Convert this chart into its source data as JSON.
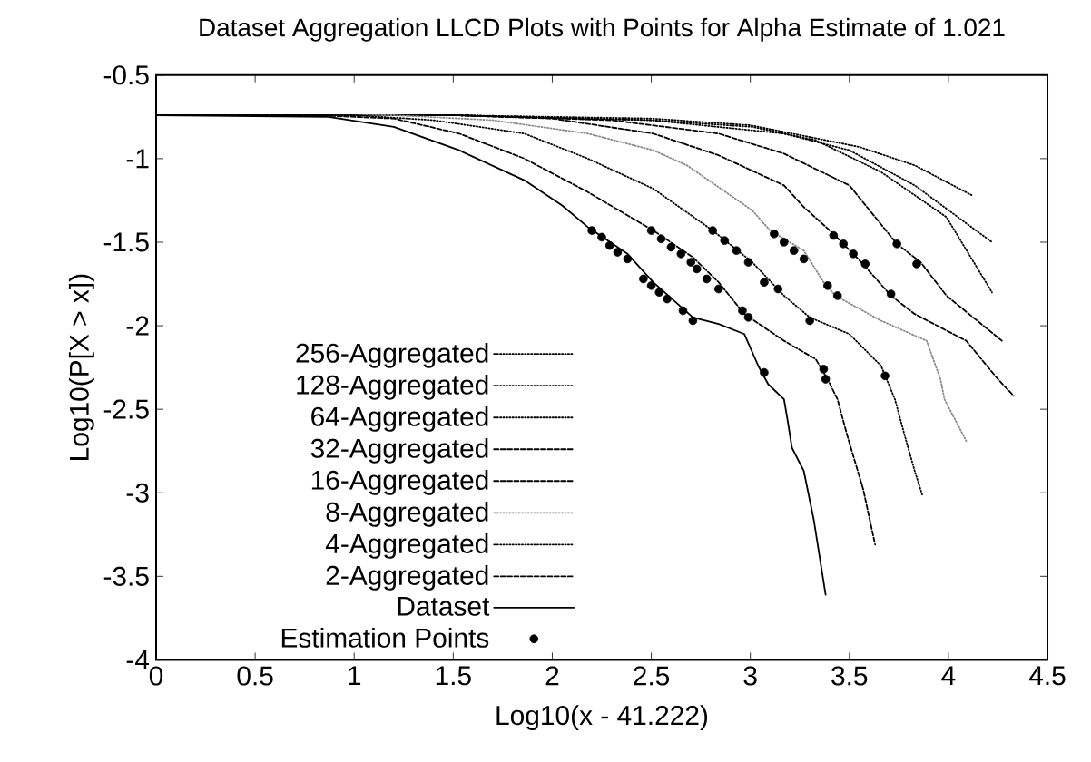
{
  "chart_data": {
    "type": "line",
    "title": "Dataset Aggregation LLCD Plots with Points for Alpha Estimate of 1.021",
    "xlabel": "Log10(x - 41.222)",
    "ylabel": "Log10(P[X > x])",
    "xlim": [
      0,
      4.5
    ],
    "ylim": [
      -4,
      -0.5
    ],
    "xticks": [
      0,
      0.5,
      1,
      1.5,
      2,
      2.5,
      3,
      3.5,
      4,
      4.5
    ],
    "yticks": [
      -4,
      -3.5,
      -3,
      -2.5,
      -2,
      -1.5,
      -1,
      -0.5
    ],
    "grid": false,
    "legend": "bottom left",
    "marker": "none",
    "series": [
      {
        "name": "256-Aggregated",
        "color": "#000000",
        "line_style": "dotted",
        "x": [
          0,
          1.5,
          2.5,
          3.0,
          3.55,
          3.83,
          4.12
        ],
        "values": [
          -0.74,
          -0.74,
          -0.76,
          -0.8,
          -0.93,
          -1.04,
          -1.22
        ]
      },
      {
        "name": "128-Aggregated",
        "color": "#000000",
        "line_style": "dotted",
        "x": [
          0,
          1.5,
          2.5,
          3.17,
          3.5,
          3.83,
          4.22
        ],
        "values": [
          -0.74,
          -0.74,
          -0.77,
          -0.85,
          -0.95,
          -1.16,
          -1.5
        ]
      },
      {
        "name": "64-Aggregated",
        "color": "#000000",
        "line_style": "dotted",
        "x": [
          0,
          1.5,
          2.5,
          3.01,
          3.33,
          3.66,
          3.99,
          4.22
        ],
        "values": [
          -0.74,
          -0.74,
          -0.77,
          -0.81,
          -0.89,
          -1.08,
          -1.35,
          -1.8
        ]
      },
      {
        "name": "32-Aggregated",
        "color": "#000000",
        "line_style": "dashed",
        "x": [
          0,
          1.5,
          2.3,
          2.84,
          3.17,
          3.5,
          3.74,
          3.86,
          3.99,
          4.27
        ],
        "values": [
          -0.74,
          -0.74,
          -0.77,
          -0.85,
          -0.97,
          -1.16,
          -1.51,
          -1.62,
          -1.82,
          -2.09
        ]
      },
      {
        "name": "16-Aggregated",
        "color": "#000000",
        "line_style": "dashed",
        "x": [
          0,
          1.5,
          2.0,
          2.51,
          2.84,
          3.17,
          3.27,
          3.42,
          3.56,
          3.71,
          3.83,
          4.09,
          4.25,
          4.33
        ],
        "values": [
          -0.74,
          -0.74,
          -0.76,
          -0.85,
          -0.98,
          -1.16,
          -1.29,
          -1.45,
          -1.62,
          -1.82,
          -1.93,
          -2.09,
          -2.32,
          -2.42
        ]
      },
      {
        "name": "8-Aggregated",
        "color": "#888888",
        "line_style": "dotted",
        "x": [
          0,
          1.2,
          1.7,
          2.18,
          2.51,
          2.68,
          3.01,
          3.1,
          3.27,
          3.37,
          3.43,
          3.66,
          3.89,
          3.96,
          3.98,
          4.09
        ],
        "values": [
          -0.74,
          -0.74,
          -0.77,
          -0.85,
          -0.95,
          -1.04,
          -1.31,
          -1.43,
          -1.55,
          -1.74,
          -1.82,
          -1.97,
          -2.09,
          -2.32,
          -2.44,
          -2.69
        ]
      },
      {
        "name": "4-Aggregated",
        "color": "#000000",
        "line_style": "dotted",
        "x": [
          0,
          1.0,
          1.4,
          1.86,
          2.18,
          2.51,
          2.81,
          3.01,
          3.17,
          3.3,
          3.5,
          3.66,
          3.73,
          3.78,
          3.83,
          3.87
        ],
        "values": [
          -0.74,
          -0.74,
          -0.77,
          -0.85,
          -1.0,
          -1.18,
          -1.43,
          -1.62,
          -1.82,
          -1.95,
          -2.05,
          -2.24,
          -2.44,
          -2.66,
          -2.87,
          -3.02
        ]
      },
      {
        "name": "2-Aggregated",
        "color": "#000000",
        "line_style": "dashed",
        "x": [
          0,
          0.8,
          1.2,
          1.53,
          1.86,
          2.18,
          2.51,
          2.71,
          2.84,
          2.97,
          3.17,
          3.33,
          3.39,
          3.44,
          3.49,
          3.57,
          3.63
        ],
        "values": [
          -0.74,
          -0.74,
          -0.76,
          -0.85,
          -1.0,
          -1.2,
          -1.43,
          -1.59,
          -1.74,
          -1.93,
          -2.09,
          -2.2,
          -2.32,
          -2.44,
          -2.66,
          -2.98,
          -3.31
        ]
      },
      {
        "name": "Dataset",
        "color": "#000000",
        "line_style": "solid",
        "x": [
          0,
          0.87,
          1.2,
          1.53,
          1.86,
          2.05,
          2.18,
          2.38,
          2.51,
          2.71,
          2.84,
          2.97,
          3.04,
          3.09,
          3.17,
          3.19,
          3.21,
          3.27,
          3.32,
          3.38
        ],
        "values": [
          -0.74,
          -0.75,
          -0.81,
          -0.95,
          -1.13,
          -1.28,
          -1.41,
          -1.57,
          -1.74,
          -1.95,
          -1.99,
          -2.05,
          -2.24,
          -2.35,
          -2.44,
          -2.58,
          -2.73,
          -2.87,
          -3.16,
          -3.61
        ]
      },
      {
        "name": "Estimation Points",
        "type": "scatter",
        "marker": "circle",
        "color": "#000000",
        "x": [
          2.2,
          2.25,
          2.29,
          2.33,
          2.38,
          2.46,
          2.5,
          2.54,
          2.58,
          2.66,
          2.71,
          3.07,
          2.5,
          2.55,
          2.6,
          2.65,
          2.7,
          2.73,
          2.78,
          2.84,
          2.96,
          2.99,
          3.37,
          3.38,
          2.81,
          2.87,
          2.93,
          2.99,
          3.07,
          3.14,
          3.3,
          3.68,
          3.12,
          3.17,
          3.22,
          3.27,
          3.39,
          3.44,
          3.42,
          3.47,
          3.52,
          3.58,
          3.71,
          3.74,
          3.84
        ],
        "values": [
          -1.43,
          -1.47,
          -1.52,
          -1.56,
          -1.6,
          -1.72,
          -1.76,
          -1.8,
          -1.84,
          -1.91,
          -1.97,
          -2.28,
          -1.43,
          -1.48,
          -1.53,
          -1.57,
          -1.62,
          -1.66,
          -1.72,
          -1.78,
          -1.91,
          -1.95,
          -2.26,
          -2.32,
          -1.43,
          -1.49,
          -1.55,
          -1.62,
          -1.74,
          -1.78,
          -1.97,
          -2.3,
          -1.45,
          -1.5,
          -1.55,
          -1.6,
          -1.76,
          -1.82,
          -1.46,
          -1.51,
          -1.57,
          -1.63,
          -1.81,
          -1.51,
          -1.63
        ]
      }
    ]
  }
}
